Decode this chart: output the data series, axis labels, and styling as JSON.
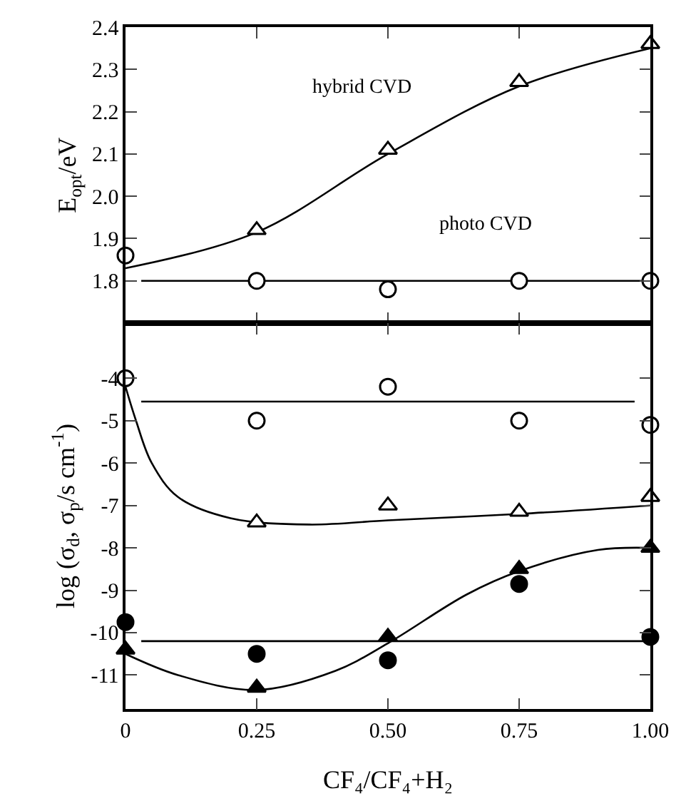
{
  "chart_data": [
    {
      "type": "scatter",
      "ylabel": "E$_{opt}$/eV",
      "xlim": [
        0,
        1
      ],
      "xticks": [
        0,
        0.25,
        0.5,
        0.75,
        1
      ],
      "ylim": [
        1.7,
        2.4
      ],
      "yticks": [
        1.8,
        1.9,
        {
          "value": 2.0,
          "label": "2.0"
        },
        2.1,
        2.2,
        2.3,
        2.4
      ],
      "tick_labels": "y",
      "annotations": [
        "hybrid CVD",
        "photo CVD"
      ],
      "series": [
        {
          "type": "line",
          "color": "#000000",
          "x": [
            0,
            0.25,
            0.5,
            0.75,
            1.0
          ],
          "values": [
            1.83,
            1.915,
            2.1,
            2.26,
            2.35
          ]
        },
        {
          "type": "line",
          "color": "#000000",
          "x": [
            0.03,
            1.0
          ],
          "values": [
            1.8,
            1.8
          ]
        },
        {
          "marker": "triangle",
          "color": "#ffffff",
          "x": [
            0.25,
            0.5,
            0.75,
            1.0
          ],
          "values": [
            1.92,
            2.11,
            2.27,
            2.36
          ]
        },
        {
          "marker": "circle",
          "color": "#ffffff",
          "x": [
            0,
            0.25,
            0.5,
            0.75,
            1.0
          ],
          "values": [
            1.86,
            1.8,
            1.78,
            1.8,
            1.8
          ]
        }
      ]
    },
    {
      "type": "scatter",
      "xlabel": "CF₄/CF₄+H₂",
      "ylabel": "log (σ$_{d}$, σ$_{p}$/s cm$^{-1}$)",
      "xlim": [
        0,
        1
      ],
      "xticks": [
        {
          "value": 0,
          "label": "0"
        },
        {
          "value": 0.25,
          "label": "0.25"
        },
        {
          "value": 0.5,
          "label": "0.50"
        },
        {
          "value": 0.75,
          "label": "0.75"
        },
        {
          "value": 1,
          "label": "1.00"
        }
      ],
      "ylim": [
        -11.8,
        -2.7
      ],
      "yticks": [
        -11,
        -10,
        -9,
        -8,
        -7,
        -6,
        -5,
        -4
      ],
      "series": [
        {
          "type": "line",
          "color": "#000000",
          "x": [
            0.03,
            0.97
          ],
          "values": [
            -4.55,
            -4.55
          ]
        },
        {
          "type": "line",
          "color": "#000000",
          "x": [
            0,
            0.02,
            0.05,
            0.1,
            0.2,
            0.35,
            0.5,
            0.75,
            1.0
          ],
          "values": [
            -4.2,
            -5.0,
            -6.0,
            -6.8,
            -7.3,
            -7.45,
            -7.35,
            -7.2,
            -7.0
          ]
        },
        {
          "type": "line",
          "color": "#000000",
          "x": [
            0.03,
            1.0
          ],
          "values": [
            -10.2,
            -10.2
          ]
        },
        {
          "type": "line",
          "color": "#000000",
          "x": [
            0,
            0.1,
            0.25,
            0.4,
            0.5,
            0.65,
            0.75,
            0.9,
            1.0
          ],
          "values": [
            -10.5,
            -11.0,
            -11.35,
            -10.9,
            -10.25,
            -9.1,
            -8.55,
            -8.05,
            -8.0
          ]
        },
        {
          "marker": "circle",
          "color": "#ffffff",
          "x": [
            0,
            0.25,
            0.5,
            0.75,
            1.0
          ],
          "values": [
            -4.0,
            -5.0,
            -4.2,
            -5.0,
            -5.1
          ]
        },
        {
          "marker": "triangle",
          "color": "#ffffff",
          "x": [
            0.25,
            0.5,
            0.75,
            1.0
          ],
          "values": [
            -7.4,
            -7.0,
            -7.15,
            -6.8
          ]
        },
        {
          "marker": "circle",
          "color": "#000000",
          "x": [
            0,
            0.25,
            0.5,
            0.75,
            1.0
          ],
          "values": [
            -9.75,
            -10.5,
            -10.65,
            -8.85,
            -10.1
          ]
        },
        {
          "marker": "triangle",
          "color": "#000000",
          "x": [
            0,
            0.25,
            0.5,
            0.75,
            1.0
          ],
          "values": [
            -10.4,
            -11.3,
            -10.1,
            -8.5,
            -8.0
          ]
        }
      ]
    }
  ]
}
